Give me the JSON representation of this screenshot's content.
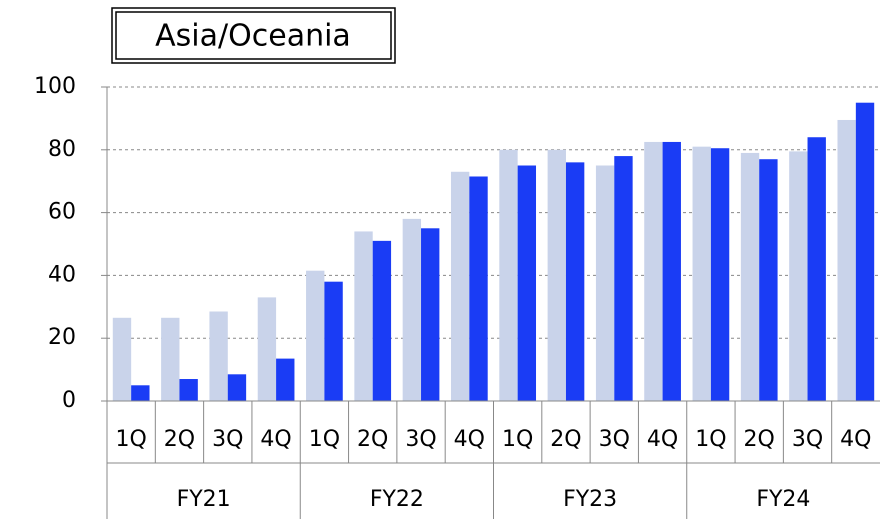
{
  "chart_data": {
    "type": "bar",
    "title": "Asia/Oceania",
    "categories": [
      "1Q",
      "2Q",
      "3Q",
      "4Q",
      "1Q",
      "2Q",
      "3Q",
      "4Q",
      "1Q",
      "2Q",
      "3Q",
      "4Q",
      "1Q",
      "2Q",
      "3Q",
      "4Q"
    ],
    "groups": [
      "FY21",
      "FY22",
      "FY23",
      "FY24"
    ],
    "series": [
      {
        "color": "#c9d3ea",
        "values": [
          26.5,
          26.5,
          28.5,
          33,
          41.5,
          54,
          58,
          73,
          80,
          80,
          75,
          82.5,
          81,
          79,
          79.5,
          89.5
        ]
      },
      {
        "color": "#1a3cf5",
        "values": [
          5,
          7,
          8.5,
          13.5,
          38,
          51,
          55,
          71.5,
          75,
          76,
          78,
          82.5,
          80.5,
          77,
          84,
          95
        ]
      }
    ],
    "ylim": [
      0,
      100
    ],
    "yticks": [
      0,
      20,
      40,
      60,
      80,
      100
    ],
    "grid": true
  }
}
